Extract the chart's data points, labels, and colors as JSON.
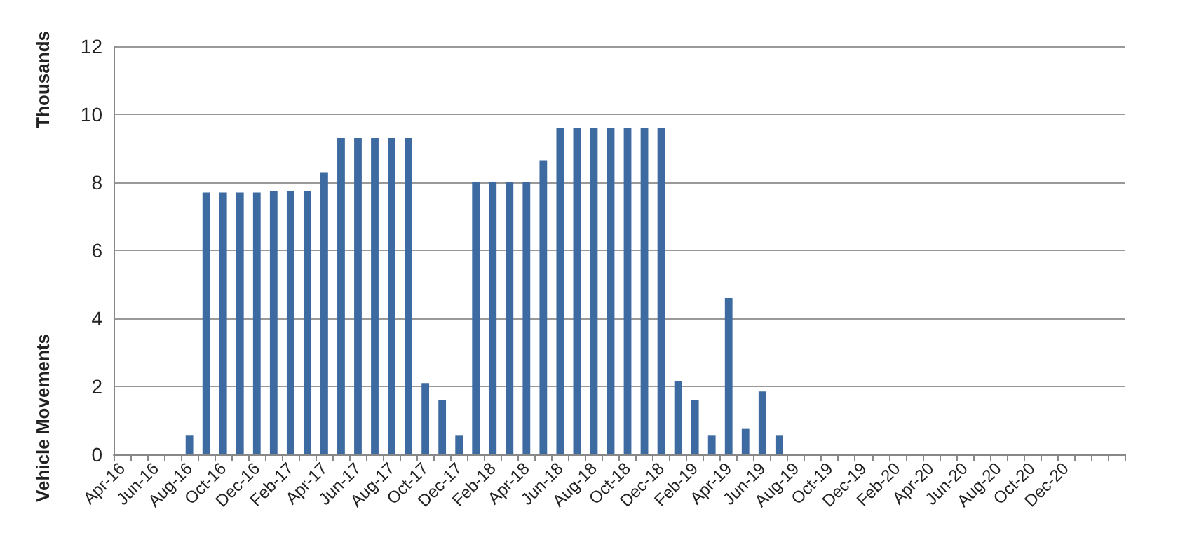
{
  "chart_data": {
    "type": "bar",
    "ylabel": "Vehicle Movements",
    "annotations": [
      "Thousands"
    ],
    "categories": [
      "Apr-16",
      null,
      "Jun-16",
      null,
      "Aug-16",
      null,
      "Oct-16",
      null,
      "Dec-16",
      null,
      "Feb-17",
      null,
      "Apr-17",
      null,
      "Jun-17",
      null,
      "Aug-17",
      null,
      "Oct-17",
      null,
      "Dec-17",
      null,
      "Feb-18",
      null,
      "Apr-18",
      null,
      "Jun-18",
      null,
      "Aug-18",
      null,
      "Oct-18",
      null,
      "Dec-18",
      null,
      "Feb-19",
      null,
      "Apr-19",
      null,
      "Jun-19",
      null,
      "Aug-19",
      null,
      "Oct-19",
      null,
      "Dec-19",
      null,
      "Feb-20",
      null,
      "Apr-20",
      null,
      "Jun-20",
      null,
      "Aug-20",
      null,
      "Oct-20",
      null,
      "Dec-20",
      null,
      null,
      null
    ],
    "values": [
      0,
      0,
      0,
      0,
      0.55,
      7.7,
      7.7,
      7.7,
      7.7,
      7.75,
      7.75,
      7.75,
      8.3,
      9.3,
      9.3,
      9.3,
      9.3,
      9.3,
      2.1,
      1.6,
      0.55,
      8,
      8,
      8,
      8,
      8.65,
      9.6,
      9.6,
      9.6,
      9.6,
      9.6,
      9.6,
      9.6,
      2.15,
      1.6,
      0.55,
      4.6,
      0.75,
      1.85,
      0.55,
      0,
      0,
      0,
      0,
      0,
      0,
      0,
      0,
      0,
      0,
      0,
      0,
      0,
      0,
      0,
      0,
      0,
      0,
      0,
      0
    ],
    "color": "#3d6aa0",
    "ylim": [
      0,
      12
    ],
    "yticks": [
      0,
      2,
      4,
      6,
      8,
      10,
      12
    ],
    "grid": "y"
  }
}
